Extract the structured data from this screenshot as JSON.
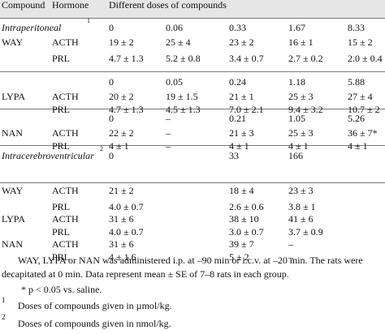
{
  "header": {
    "compound": "Compound",
    "hormone": "Hormone",
    "doses": "Different doses of compounds"
  },
  "sections": [
    {
      "label": "Intraperitoneal",
      "sup": "1",
      "doses": [
        "0",
        "0.06",
        "0.33",
        "1.67",
        "8.33"
      ],
      "rows": [
        {
          "compound": "WAY",
          "hormone": "ACTH",
          "values": [
            "19 ± 2",
            "25 ± 4",
            "23 ± 2",
            "16 ± 1",
            "15 ± 2"
          ]
        },
        {
          "compound": "",
          "hormone": "PRL",
          "values": [
            "4.7 ± 1.3",
            "5.2 ± 0.8",
            "3.4 ± 0.7",
            "2.7 ± 0.2",
            "2.0 ± 0.4"
          ]
        }
      ]
    },
    {
      "label": "",
      "sup": "",
      "doses": [
        "0",
        "0.05",
        "0.24",
        "1.18",
        "5.88"
      ],
      "rows": [
        {
          "compound": "LYPA",
          "hormone": "ACTH",
          "values": [
            "20 ± 2",
            "19 ± 1.5",
            "21 ± 1",
            "25 ± 3",
            "27 ± 4"
          ]
        },
        {
          "compound": "",
          "hormone": "PRL",
          "values": [
            "4.7 ± 1.3",
            "4.5 ± 1.3",
            "7.0 ± 2.1",
            "9.4 ± 3.2",
            "10.7 ± 2"
          ]
        }
      ]
    },
    {
      "label": "",
      "sup": "",
      "doses": [
        "0",
        "–",
        "0.21",
        "1.05",
        "5.26"
      ],
      "rows": [
        {
          "compound": "NAN",
          "hormone": "ACTH",
          "values": [
            "22 ± 2",
            "–",
            "21 ± 3",
            "25 ± 3",
            "36 ± 7*"
          ]
        },
        {
          "compound": "",
          "hormone": "PRL",
          "values": [
            "4 ± 1",
            "–",
            "4 ± 1",
            "4 ± 1",
            "4 ± 1"
          ]
        }
      ]
    },
    {
      "label": "Intracerebroventricular",
      "sup": "2",
      "doses": [
        "0",
        "",
        "33",
        "166",
        ""
      ],
      "rows": [
        {
          "compound": "WAY",
          "hormone": "ACTH",
          "values": [
            "21 ± 2",
            "",
            "18 ± 4",
            "23 ± 3",
            ""
          ]
        },
        {
          "compound": "",
          "hormone": "PRL",
          "values": [
            "4.0 ± 0.7",
            "",
            "2.6 ± 0.6",
            "3.8 ± 1",
            ""
          ]
        },
        {
          "compound": "LYPA",
          "hormone": "ACTH",
          "values": [
            "31 ± 6",
            "",
            "38 ± 10",
            "41 ± 6",
            ""
          ]
        },
        {
          "compound": "",
          "hormone": "PRL",
          "values": [
            "4.0 ± 0.7",
            "",
            "3.0 ± 0.7",
            "3.7 ± 0.9",
            ""
          ]
        },
        {
          "compound": "NAN",
          "hormone": "ACTH",
          "values": [
            "31 ± 6",
            "",
            "39 ± 7",
            "–",
            ""
          ]
        },
        {
          "compound": "",
          "hormone": "PRL",
          "values": [
            "4 ± 1.6",
            "",
            "5 ± 2",
            "–",
            ""
          ]
        }
      ]
    }
  ],
  "notes": {
    "main_line1": "WAY, LYPA or NAN was administered i.p. at –90 min or i.c.v. at –20 min. The rats were",
    "main_line2": "decapitated at 0 min. Data represent mean ± SE of 7–8 rats in each group.",
    "significance": "* p < 0.05 vs. saline.",
    "fn1_mark": "1",
    "fn1_text": "Doses of compounds given in µmol/kg.",
    "fn2_mark": "2",
    "fn2_text": "Doses of compounds given in nmol/kg."
  }
}
